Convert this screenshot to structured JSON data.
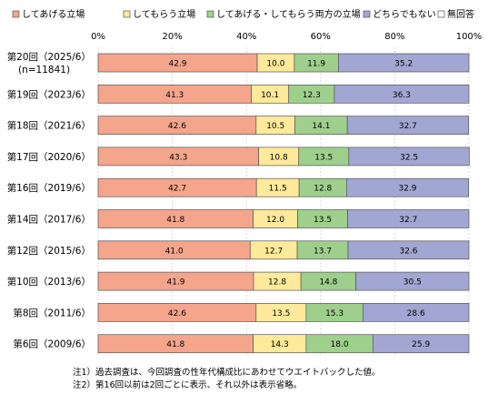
{
  "chart_data": {
    "type": "bar",
    "orientation": "horizontal",
    "stacked": true,
    "legend_position": "top",
    "xlim": [
      0,
      100
    ],
    "x_ticks": [
      "0%",
      "20%",
      "40%",
      "60%",
      "80%",
      "100%"
    ],
    "categories": [
      "第20回（2025/6）",
      "第19回（2023/6）",
      "第18回（2021/6）",
      "第17回（2020/6）",
      "第16回（2019/6）",
      "第14回（2017/6）",
      "第12回（2015/6）",
      "第10回（2013/6）",
      "第8回（2011/6）",
      "第6回（2009/6）"
    ],
    "category_sublabels": [
      "(n=11841)",
      "",
      "",
      "",
      "",
      "",
      "",
      "",
      "",
      ""
    ],
    "series": [
      {
        "name": "してあげる立場",
        "color": "#f4a58c",
        "values": [
          42.9,
          41.3,
          42.6,
          43.3,
          42.7,
          41.8,
          41.0,
          41.9,
          42.6,
          41.8
        ]
      },
      {
        "name": "してもらう立場",
        "color": "#ffe99a",
        "values": [
          10.0,
          10.1,
          10.5,
          10.8,
          11.5,
          12.0,
          12.7,
          12.8,
          13.5,
          14.3
        ]
      },
      {
        "name": "してあげる・してもらう両方の立場",
        "color": "#9fcf8d",
        "values": [
          11.9,
          12.3,
          14.1,
          13.5,
          12.8,
          13.5,
          13.7,
          14.8,
          15.3,
          18.0
        ]
      },
      {
        "name": "どちらでもない",
        "color": "#a2a6d2",
        "values": [
          35.2,
          36.3,
          32.7,
          32.5,
          32.9,
          32.7,
          32.6,
          30.5,
          28.6,
          25.9
        ]
      },
      {
        "name": "無回答",
        "color": "#ffffff",
        "values": [
          0,
          0,
          0,
          0,
          0,
          0,
          0,
          0,
          0,
          0
        ]
      }
    ],
    "notes": [
      "注1）過去調査は、今回調査の性年代構成比にあわせてウエイトバックした値。",
      "注2）第16回以前は2回ごとに表示、それ以外は表示省略。"
    ]
  }
}
